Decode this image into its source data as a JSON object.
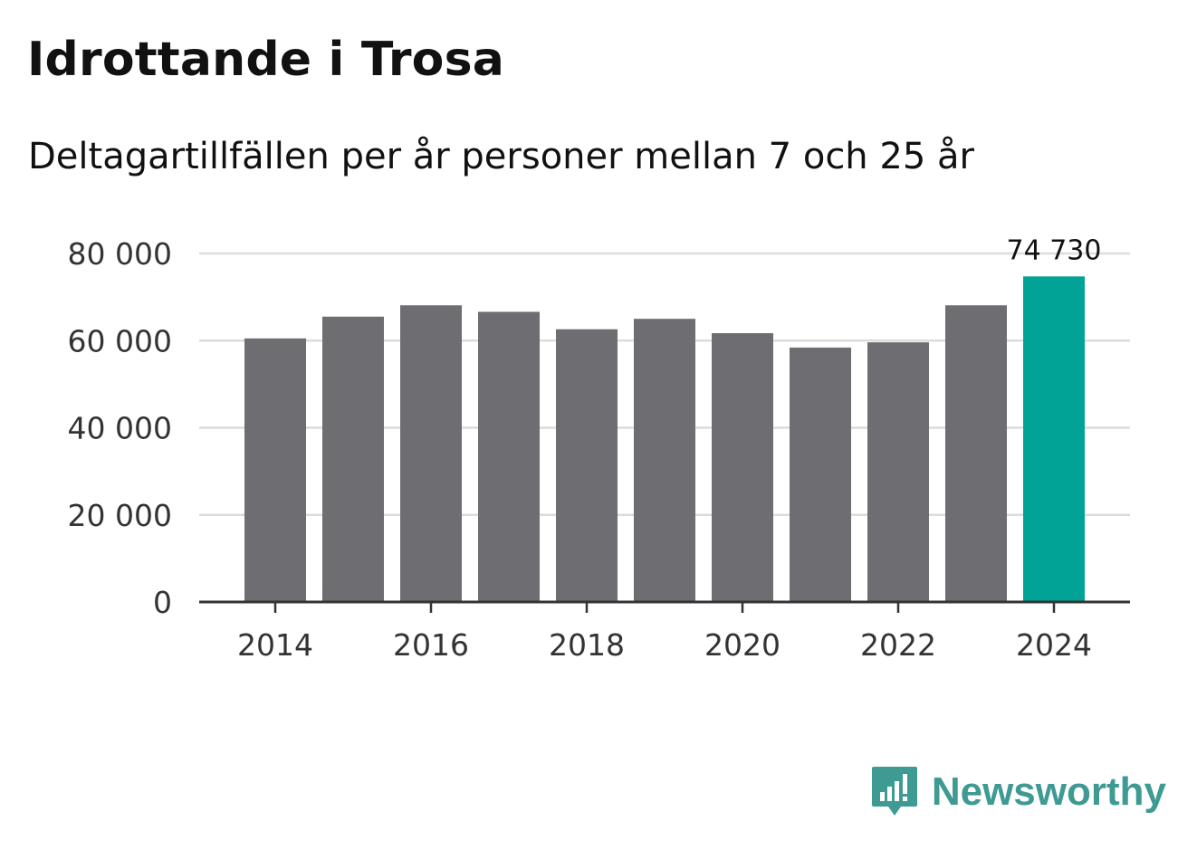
{
  "title": "Idrottande i Trosa",
  "subtitle": "Deltagartillfällen per år personer mellan 7 och 25 år",
  "brand": {
    "name": "Newsworthy",
    "icon": "newsworthy-logo-icon"
  },
  "colors": {
    "bar": "#6e6d72",
    "highlight": "#00a396",
    "grid": "#dcdcdc",
    "axis": "#333333",
    "brand": "#3f9a94"
  },
  "chart_data": {
    "type": "bar",
    "title": "Idrottande i Trosa",
    "subtitle": "Deltagartillfällen per år personer mellan 7 och 25 år",
    "categories": [
      "2014",
      "2015",
      "2016",
      "2017",
      "2018",
      "2019",
      "2020",
      "2021",
      "2022",
      "2023",
      "2024"
    ],
    "values": [
      60500,
      65500,
      68100,
      66600,
      62600,
      65000,
      61700,
      58400,
      59600,
      68100,
      74730
    ],
    "highlight_index": 10,
    "annotation": {
      "index": 10,
      "text": "74 730"
    },
    "ylim": [
      0,
      80000
    ],
    "yticks": [
      0,
      20000,
      40000,
      60000,
      80000
    ],
    "ytick_labels": [
      "0",
      "20 000",
      "40 000",
      "60 000",
      "80 000"
    ],
    "xtick_labels": [
      "2014",
      "2016",
      "2018",
      "2020",
      "2022",
      "2024"
    ],
    "xlabel": "",
    "ylabel": "",
    "grid": true,
    "legend": "none"
  }
}
